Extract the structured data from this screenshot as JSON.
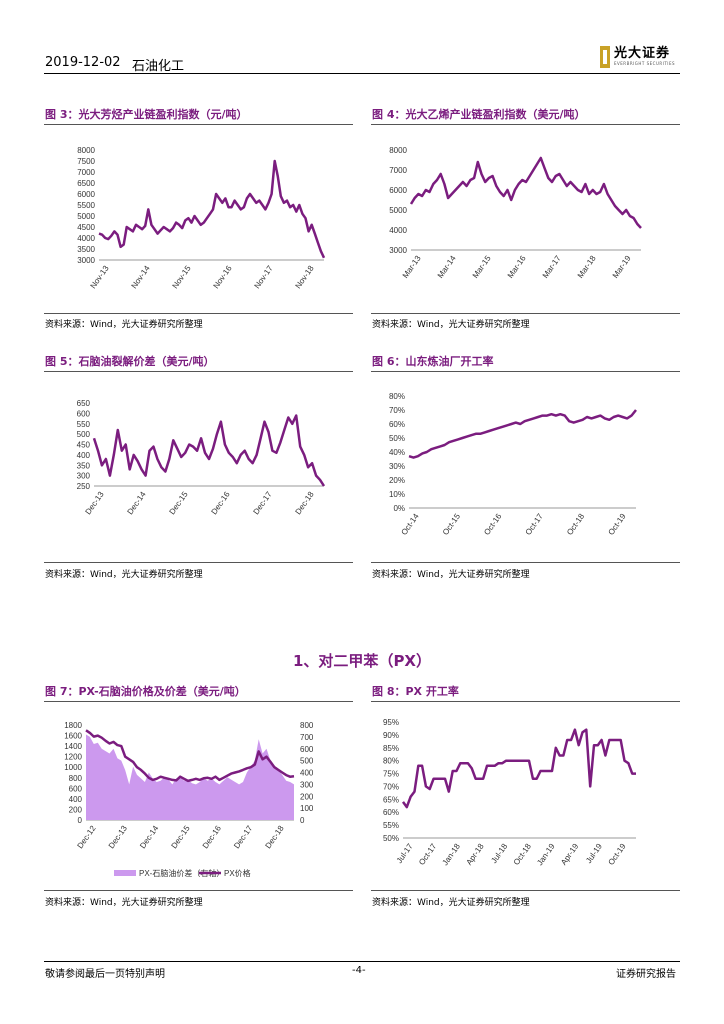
{
  "header": {
    "date": "2019-12-02",
    "sector": "石油化工",
    "logo_cn": "光大证券",
    "logo_en": "EVERBRIGHT SECURITIES"
  },
  "source_text": "资料来源：Wind，光大证券研究所整理",
  "section_heading": "1、对二甲苯（PX）",
  "footer": {
    "left": "敬请参阅最后一页特别声明",
    "center": "-4-",
    "right": "证券研究报告"
  },
  "colors": {
    "line": "#7b1d7f",
    "area": "#cc99ee"
  },
  "chart_data": [
    {
      "id": "fig3",
      "type": "line",
      "title": "图 3：光大芳烃产业链盈利指数（元/吨）",
      "ylim": [
        3000,
        8000
      ],
      "yticks": [
        "8000",
        "7500",
        "7000",
        "6500",
        "6000",
        "5500",
        "5000",
        "4500",
        "4000",
        "3500",
        "3000"
      ],
      "xticks": [
        "Nov-13",
        "Nov-14",
        "Nov-15",
        "Nov-16",
        "Nov-17",
        "Nov-18"
      ],
      "series": [
        {
          "name": "芳烃产业链盈利指数",
          "values": [
            4200,
            4150,
            4000,
            3950,
            4100,
            4300,
            4150,
            3600,
            3700,
            4500,
            4400,
            4300,
            4600,
            4500,
            4400,
            4550,
            5300,
            4600,
            4400,
            4200,
            4350,
            4500,
            4400,
            4300,
            4450,
            4700,
            4600,
            4450,
            4800,
            4900,
            4700,
            5000,
            4800,
            4600,
            4700,
            4900,
            5100,
            5300,
            6000,
            5800,
            5600,
            5800,
            5400,
            5400,
            5700,
            5500,
            5300,
            5400,
            5800,
            6000,
            5800,
            5600,
            5700,
            5500,
            5300,
            5600,
            6000,
            7500,
            6800,
            5900,
            5600,
            5700,
            5400,
            5500,
            5200,
            5500,
            5100,
            4900,
            4300,
            4600,
            4200,
            3800,
            3400,
            3100
          ]
        }
      ]
    },
    {
      "id": "fig4",
      "type": "line",
      "title": "图 4：光大乙烯产业链盈利指数（美元/吨）",
      "ylim": [
        3000,
        8000
      ],
      "yticks": [
        "8000",
        "7000",
        "6000",
        "5000",
        "4000",
        "3000"
      ],
      "xticks": [
        "Mar-13",
        "Mar-14",
        "Mar-15",
        "Mar-16",
        "Mar-17",
        "Mar-18",
        "Mar-19"
      ],
      "series": [
        {
          "name": "乙烯产业链盈利指数",
          "values": [
            5300,
            5600,
            5800,
            5700,
            6000,
            5900,
            6300,
            6500,
            6800,
            6300,
            5600,
            5800,
            6000,
            6200,
            6400,
            6200,
            6500,
            6600,
            7400,
            6800,
            6400,
            6600,
            6700,
            6200,
            5900,
            5700,
            6000,
            5500,
            6000,
            6300,
            6500,
            6400,
            6700,
            7000,
            7300,
            7600,
            7100,
            6600,
            6400,
            6700,
            6800,
            6500,
            6200,
            6400,
            6200,
            6000,
            5900,
            6300,
            5800,
            6000,
            5800,
            5900,
            6300,
            5800,
            5500,
            5200,
            5000,
            4800,
            5000,
            4700,
            4600,
            4300,
            4100
          ]
        }
      ]
    },
    {
      "id": "fig5",
      "type": "line",
      "title": "图 5：石脑油裂解价差（美元/吨）",
      "ylim": [
        250,
        650
      ],
      "yticks": [
        "650",
        "600",
        "550",
        "500",
        "450",
        "400",
        "350",
        "300",
        "250"
      ],
      "xticks": [
        "Dec-13",
        "Dec-14",
        "Dec-15",
        "Dec-16",
        "Dec-17",
        "Dec-18"
      ],
      "series": [
        {
          "name": "石脑油裂解价差",
          "values": [
            480,
            420,
            350,
            380,
            300,
            400,
            520,
            420,
            450,
            330,
            400,
            370,
            330,
            300,
            420,
            440,
            380,
            340,
            320,
            380,
            470,
            430,
            390,
            410,
            450,
            440,
            420,
            480,
            410,
            380,
            430,
            500,
            560,
            450,
            410,
            390,
            360,
            400,
            420,
            380,
            360,
            400,
            480,
            560,
            510,
            420,
            410,
            460,
            520,
            580,
            550,
            590,
            440,
            400,
            340,
            360,
            300,
            280,
            250
          ]
        }
      ]
    },
    {
      "id": "fig6",
      "type": "line",
      "title": "图 6：山东炼油厂开工率",
      "ylim": [
        0,
        80
      ],
      "unit": "%",
      "yticks": [
        "80%",
        "70%",
        "60%",
        "50%",
        "40%",
        "30%",
        "20%",
        "10%",
        "0%"
      ],
      "xticks": [
        "Oct-14",
        "Oct-15",
        "Oct-16",
        "Oct-17",
        "Oct-18",
        "Oct-19"
      ],
      "series": [
        {
          "name": "山东炼油厂开工率",
          "values": [
            37,
            36,
            37,
            39,
            40,
            42,
            43,
            44,
            45,
            47,
            48,
            49,
            50,
            51,
            52,
            53,
            53,
            54,
            55,
            56,
            57,
            58,
            59,
            60,
            61,
            60,
            62,
            63,
            64,
            65,
            66,
            66,
            67,
            66,
            67,
            66,
            62,
            61,
            62,
            63,
            65,
            64,
            65,
            66,
            64,
            63,
            65,
            66,
            65,
            64,
            66,
            70
          ]
        }
      ]
    },
    {
      "id": "fig7",
      "type": "area+line",
      "title": "图 7：PX-石脑油价格及价差（美元/吨）",
      "ylim": [
        0,
        1800
      ],
      "ylim_right": [
        0,
        800
      ],
      "yticks": [
        "1800",
        "1600",
        "1400",
        "1200",
        "1000",
        "800",
        "600",
        "400",
        "200",
        "0"
      ],
      "yticks_right": [
        "800",
        "700",
        "600",
        "500",
        "400",
        "300",
        "200",
        "100",
        "0"
      ],
      "xticks": [
        "Dec-12",
        "Dec-13",
        "Dec-14",
        "Dec-15",
        "Dec-16",
        "Dec-17",
        "Dec-18"
      ],
      "legend": [
        "PX-石脑油价差（右轴）",
        "PX价格"
      ],
      "series": [
        {
          "name": "PX-石脑油价差（右轴）",
          "values": [
            720,
            700,
            640,
            650,
            600,
            580,
            560,
            600,
            520,
            500,
            420,
            300,
            450,
            380,
            350,
            320,
            400,
            350,
            320,
            330,
            360,
            340,
            300,
            350,
            360,
            330,
            340,
            310,
            300,
            320,
            350,
            330,
            350,
            320,
            300,
            330,
            360,
            340,
            320,
            300,
            320,
            400,
            450,
            500,
            680,
            560,
            600,
            500,
            450,
            420,
            380,
            330,
            320,
            300
          ]
        },
        {
          "name": "PX价格",
          "values": [
            1700,
            1650,
            1580,
            1600,
            1560,
            1500,
            1450,
            1480,
            1420,
            1400,
            1200,
            1150,
            1100,
            1000,
            950,
            880,
            800,
            760,
            780,
            820,
            800,
            780,
            760,
            750,
            820,
            780,
            740,
            760,
            780,
            760,
            790,
            800,
            780,
            820,
            760,
            800,
            840,
            880,
            900,
            920,
            950,
            980,
            1000,
            1050,
            1300,
            1150,
            1200,
            1100,
            1000,
            950,
            900,
            850,
            820,
            830
          ]
        }
      ]
    },
    {
      "id": "fig8",
      "type": "line",
      "title": "图 8：PX 开工率",
      "ylim": [
        50,
        95
      ],
      "unit": "%",
      "yticks": [
        "95%",
        "90%",
        "85%",
        "80%",
        "75%",
        "70%",
        "65%",
        "60%",
        "55%",
        "50%"
      ],
      "xticks": [
        "Jul-17",
        "Oct-17",
        "Jan-18",
        "Apr-18",
        "Jul-18",
        "Oct-18",
        "Jan-19",
        "Apr-19",
        "Jul-19",
        "Oct-19"
      ],
      "series": [
        {
          "name": "PX开工率",
          "values": [
            64,
            62,
            66,
            68,
            78,
            78,
            70,
            69,
            73,
            73,
            73,
            73,
            68,
            76,
            76,
            79,
            79,
            79,
            77,
            73,
            73,
            73,
            78,
            78,
            78,
            79,
            79,
            80,
            80,
            80,
            80,
            80,
            80,
            80,
            73,
            73,
            76,
            76,
            76,
            76,
            85,
            82,
            82,
            88,
            88,
            92,
            86,
            91,
            92,
            70,
            86,
            86,
            88,
            82,
            88,
            88,
            88,
            88,
            80,
            79,
            75,
            75
          ]
        }
      ]
    }
  ]
}
